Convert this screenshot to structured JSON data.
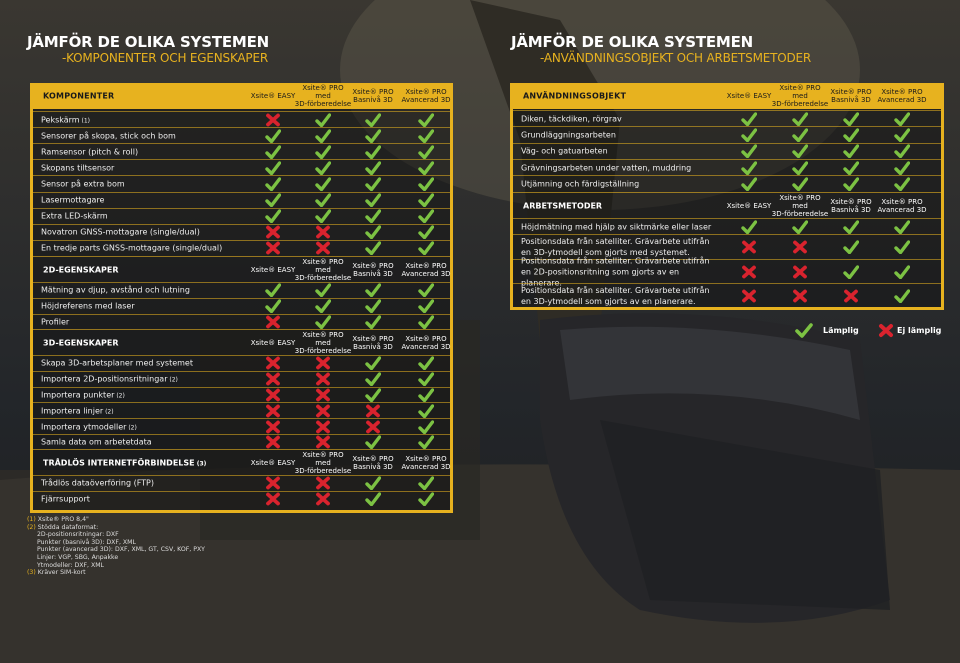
{
  "left_title": "JÄMFÖR DE OLIKA SYSTEMEN",
  "left_sub": "-KOMPONENTER OCH EGENSKAPER",
  "right_title": "JÄMFÖR DE OLIKA SYSTEMEN",
  "right_sub": "-ANVÄNDNINGSOBJEKT OCH ARBETSMETODER",
  "cols": {
    "easy": "Xsite® EASY",
    "pro_a": "Xsite® PRO",
    "pro_b": "med",
    "pro_c": "3D-förberedelse",
    "bas_a": "Xsite® PRO",
    "bas_b": "Basnivå 3D",
    "adv_a": "Xsite® PRO",
    "adv_b": "Avancerad 3D"
  },
  "colors": {
    "accent": "#e7b21f",
    "yes": "#7cc243",
    "no": "#d9232e"
  },
  "sections": {
    "komponenter": "KOMPONENTER",
    "d2": "2D-EGENSKAPER",
    "d3": "3D-EGENSKAPER",
    "tradlos": "TRÅDLÖS INTERNETFÖRBINDELSE",
    "tradlos_note": "(3)",
    "anvand": "ANVÄNDNINGSOBJEKT",
    "arbets": "ARBETSMETODER"
  },
  "komponenter": [
    {
      "label": "Pekskärm",
      "note": "(1)",
      "v": [
        0,
        1,
        1,
        1
      ]
    },
    {
      "label": "Sensorer på skopa, stick och bom",
      "note": "",
      "v": [
        1,
        1,
        1,
        1
      ]
    },
    {
      "label": "Ramsensor (pitch & roll)",
      "note": "",
      "v": [
        1,
        1,
        1,
        1
      ]
    },
    {
      "label": "Skopans tiltsensor",
      "note": "",
      "v": [
        1,
        1,
        1,
        1
      ]
    },
    {
      "label": "Sensor på extra bom",
      "note": "",
      "v": [
        1,
        1,
        1,
        1
      ]
    },
    {
      "label": "Lasermottagare",
      "note": "",
      "v": [
        1,
        1,
        1,
        1
      ]
    },
    {
      "label": "Extra LED-skärm",
      "note": "",
      "v": [
        1,
        1,
        1,
        1
      ]
    },
    {
      "label": "Novatron GNSS-mottagare (single/dual)",
      "note": "",
      "v": [
        0,
        0,
        1,
        1
      ]
    },
    {
      "label": "En tredje parts GNSS-mottagare (single/dual)",
      "note": "",
      "v": [
        0,
        0,
        1,
        1
      ]
    }
  ],
  "d2": [
    {
      "label": "Mätning av djup, avstånd och lutning",
      "note": "",
      "v": [
        1,
        1,
        1,
        1
      ]
    },
    {
      "label": "Höjdreferens med laser",
      "note": "",
      "v": [
        1,
        1,
        1,
        1
      ]
    },
    {
      "label": "Profiler",
      "note": "",
      "v": [
        0,
        1,
        1,
        1
      ]
    }
  ],
  "d3": [
    {
      "label": "Skapa 3D-arbetsplaner med systemet",
      "note": "",
      "v": [
        0,
        0,
        1,
        1
      ]
    },
    {
      "label": "Importera 2D-positionsritningar",
      "note": "(2)",
      "v": [
        0,
        0,
        1,
        1
      ]
    },
    {
      "label": "Importera punkter",
      "note": "(2)",
      "v": [
        0,
        0,
        1,
        1
      ]
    },
    {
      "label": "Importera linjer",
      "note": "(2)",
      "v": [
        0,
        0,
        0,
        1
      ]
    },
    {
      "label": "Importera ytmodeller",
      "note": "(2)",
      "v": [
        0,
        0,
        0,
        1
      ]
    },
    {
      "label": "Samla data om arbetetdata",
      "note": "",
      "v": [
        0,
        0,
        1,
        1
      ]
    }
  ],
  "tradlos": [
    {
      "label": "Trådlös dataöverföring (FTP)",
      "note": "",
      "v": [
        0,
        0,
        1,
        1
      ]
    },
    {
      "label": "Fjärrsupport",
      "note": "",
      "v": [
        0,
        0,
        1,
        1
      ]
    }
  ],
  "anvand": [
    {
      "label": "Diken, täckdiken, rörgrav",
      "v": [
        1,
        1,
        1,
        1
      ]
    },
    {
      "label": "Grundläggningsarbeten",
      "v": [
        1,
        1,
        1,
        1
      ]
    },
    {
      "label": "Väg- och gatuarbeten",
      "v": [
        1,
        1,
        1,
        1
      ]
    },
    {
      "label": "Grävningsarbeten under vatten, muddring",
      "v": [
        1,
        1,
        1,
        1
      ]
    },
    {
      "label": "Utjämning och färdigställning",
      "v": [
        1,
        1,
        1,
        1
      ]
    }
  ],
  "arbets": [
    {
      "label": "Höjdmätning med hjälp av siktmärke eller laser",
      "v": [
        1,
        1,
        1,
        1
      ]
    },
    {
      "label": "Positionsdata från satelliter. Grävarbete utifrån en 3D-ytmodell som gjorts med systemet.",
      "v": [
        0,
        0,
        1,
        1
      ]
    },
    {
      "label": "Positionsdata från satelliter. Grävarbete utifrån en 2D-positionsritning som gjorts av en planerare.",
      "v": [
        0,
        0,
        1,
        1
      ]
    },
    {
      "label": "Positionsdata från satelliter. Grävarbete utifrån en 3D-ytmodell som gjorts av en planerare.",
      "v": [
        0,
        0,
        0,
        1
      ]
    }
  ],
  "legend": {
    "yes": "Lämplig",
    "no": "Ej lämplig"
  },
  "footnotes": [
    {
      "k": "(1)",
      "t": "Xsite® PRO 8,4\""
    },
    {
      "k": "(2)",
      "t": "Stödda dataformat:"
    },
    {
      "k": "",
      "t": "2D-positionsritningar: DXF"
    },
    {
      "k": "",
      "t": "Punkter (basnivå 3D): DXF, XML"
    },
    {
      "k": "",
      "t": "Punkter (avancerad 3D): DXF, XML, GT, CSV, KOF, PXY"
    },
    {
      "k": "",
      "t": "Linjer: VGP, SBG, Anpakke"
    },
    {
      "k": "",
      "t": "Ytmodeller: DXF, XML"
    },
    {
      "k": "(3)",
      "t": "Kräver SIM-kort"
    }
  ]
}
